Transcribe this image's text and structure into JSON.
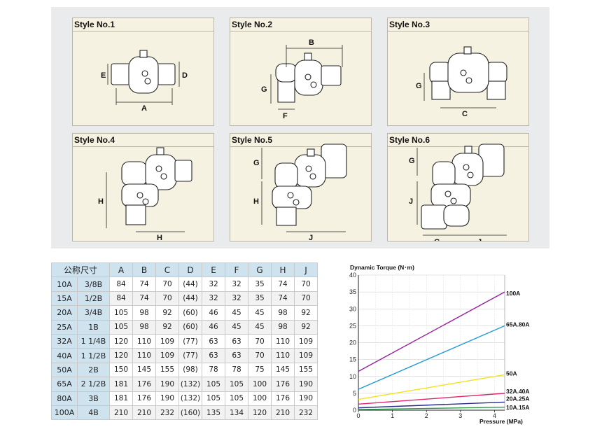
{
  "styles": [
    {
      "title": "Style No.1",
      "dims": [
        "E",
        "D",
        "A"
      ]
    },
    {
      "title": "Style No.2",
      "dims": [
        "B",
        "G",
        "F"
      ]
    },
    {
      "title": "Style No.3",
      "dims": [
        "G",
        "C"
      ]
    },
    {
      "title": "Style No.4",
      "dims": [
        "H",
        "H"
      ]
    },
    {
      "title": "Style No.5",
      "dims": [
        "G",
        "H",
        "J"
      ]
    },
    {
      "title": "Style No.6",
      "dims": [
        "G",
        "J",
        "G",
        "J"
      ]
    }
  ],
  "table": {
    "headers": [
      "公称尺寸",
      "A",
      "B",
      "C",
      "D",
      "E",
      "F",
      "G",
      "H",
      "J"
    ],
    "rows": [
      {
        "size_a": "10A",
        "size_b": "3/8B",
        "values": [
          "84",
          "74",
          "70",
          "(44)",
          "32",
          "32",
          "35",
          "74",
          "70"
        ]
      },
      {
        "size_a": "15A",
        "size_b": "1/2B",
        "values": [
          "84",
          "74",
          "70",
          "(44)",
          "32",
          "32",
          "35",
          "74",
          "70"
        ]
      },
      {
        "size_a": "20A",
        "size_b": "3/4B",
        "values": [
          "105",
          "98",
          "92",
          "(60)",
          "46",
          "45",
          "45",
          "98",
          "92"
        ]
      },
      {
        "size_a": "25A",
        "size_b": "1B",
        "values": [
          "105",
          "98",
          "92",
          "(60)",
          "46",
          "45",
          "45",
          "98",
          "92"
        ]
      },
      {
        "size_a": "32A",
        "size_b": "1 1/4B",
        "values": [
          "120",
          "110",
          "109",
          "(77)",
          "63",
          "63",
          "70",
          "110",
          "109"
        ]
      },
      {
        "size_a": "40A",
        "size_b": "1 1/2B",
        "values": [
          "120",
          "110",
          "109",
          "(77)",
          "63",
          "63",
          "70",
          "110",
          "109"
        ]
      },
      {
        "size_a": "50A",
        "size_b": "2B",
        "values": [
          "150",
          "145",
          "155",
          "(98)",
          "78",
          "78",
          "75",
          "145",
          "155"
        ]
      },
      {
        "size_a": "65A",
        "size_b": "2 1/2B",
        "values": [
          "181",
          "176",
          "190",
          "(132)",
          "105",
          "105",
          "100",
          "176",
          "190"
        ]
      },
      {
        "size_a": "80A",
        "size_b": "3B",
        "values": [
          "181",
          "176",
          "190",
          "(132)",
          "105",
          "105",
          "100",
          "176",
          "190"
        ]
      },
      {
        "size_a": "100A",
        "size_b": "4B",
        "values": [
          "210",
          "210",
          "232",
          "(160)",
          "135",
          "134",
          "120",
          "210",
          "232"
        ]
      }
    ]
  },
  "chart_data": {
    "type": "line",
    "title": "Dynamic Torque (N･m)",
    "xlabel": "Pressure (MPa)",
    "ylabel": "Dynamic Torque (N･m)",
    "xlim": [
      0,
      4.3
    ],
    "ylim": [
      0,
      40
    ],
    "xticks": [
      0,
      1,
      2,
      3,
      4
    ],
    "yticks": [
      0,
      5,
      10,
      15,
      20,
      25,
      30,
      35,
      40
    ],
    "grid": true,
    "series": [
      {
        "name": "100A",
        "color": "#9a1f9e",
        "x": [
          0,
          4.3
        ],
        "y": [
          11.5,
          35
        ]
      },
      {
        "name": "65A.80A",
        "color": "#1f9ad6",
        "x": [
          0,
          4.3
        ],
        "y": [
          6.2,
          25
        ]
      },
      {
        "name": "50A",
        "color": "#f2e21a",
        "x": [
          0,
          4.3
        ],
        "y": [
          3.2,
          10.5
        ]
      },
      {
        "name": "32A.40A",
        "color": "#e0246e",
        "x": [
          0,
          4.3
        ],
        "y": [
          1.8,
          5.0
        ]
      },
      {
        "name": "20A.25A",
        "color": "#2a2a8a",
        "x": [
          0,
          4.3
        ],
        "y": [
          0.7,
          2.4
        ]
      },
      {
        "name": "10A.15A",
        "color": "#2a9a4a",
        "x": [
          0,
          4.3
        ],
        "y": [
          0.2,
          0.9
        ]
      }
    ],
    "label_positions": [
      "100A",
      "65A.80A",
      "50A",
      "32A.40A",
      "20A.25A",
      "10A.15A"
    ]
  }
}
